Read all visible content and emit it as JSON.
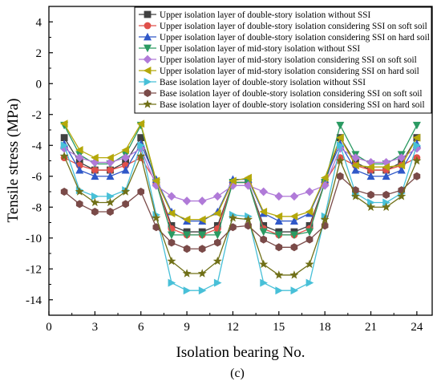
{
  "chart_data": {
    "type": "line",
    "xlabel": "Isolation bearing No.",
    "ylabel": "Tensile stress (MPa)",
    "caption": "(c)",
    "xlim": [
      0,
      25
    ],
    "ylim": [
      -15,
      5
    ],
    "xticks": [
      0,
      3,
      6,
      9,
      12,
      15,
      18,
      21,
      24
    ],
    "yticks": [
      4,
      2,
      0,
      -2,
      -4,
      -6,
      -8,
      -10,
      -12,
      -14
    ],
    "legend_position": "top-right",
    "x": [
      1,
      2,
      3,
      4,
      5,
      6,
      7,
      8,
      9,
      10,
      11,
      12,
      13,
      14,
      15,
      16,
      17,
      18,
      19,
      20,
      21,
      22,
      23,
      24
    ],
    "series": [
      {
        "name": "Upper isolation layer of double-story isolation without SSI",
        "color": "#404040",
        "marker": "square",
        "values": [
          -3.5,
          -5.1,
          -5.6,
          -5.6,
          -5.1,
          -3.5,
          -6.4,
          -9.2,
          -9.6,
          -9.6,
          -9.2,
          -6.4,
          -6.4,
          -9.2,
          -9.6,
          -9.6,
          -9.2,
          -6.4,
          -3.5,
          -5.1,
          -5.6,
          -5.6,
          -5.1,
          -3.5
        ]
      },
      {
        "name": "Upper isolation layer of double-story isolation considering SSI on soft soil",
        "color": "#e0504a",
        "marker": "circle",
        "values": [
          -4.8,
          -5.3,
          -5.6,
          -5.6,
          -5.3,
          -4.8,
          -6.4,
          -9.4,
          -9.8,
          -9.8,
          -9.4,
          -6.4,
          -6.4,
          -9.4,
          -9.8,
          -9.8,
          -9.4,
          -6.4,
          -4.8,
          -5.3,
          -5.6,
          -5.6,
          -5.3,
          -4.8
        ]
      },
      {
        "name": "Upper isolation layer of double-story isolation considering SSI on hard soil",
        "color": "#3058c8",
        "marker": "triangle-up",
        "values": [
          -3.9,
          -5.6,
          -6.0,
          -6.0,
          -5.6,
          -3.9,
          -6.2,
          -8.3,
          -8.9,
          -8.9,
          -8.3,
          -6.2,
          -6.2,
          -8.4,
          -8.9,
          -8.9,
          -8.4,
          -6.2,
          -3.9,
          -5.6,
          -6.0,
          -6.0,
          -5.6,
          -3.9
        ]
      },
      {
        "name": "Upper isolation layer of mid-story isolation without SSI",
        "color": "#2a9a62",
        "marker": "triangle-down",
        "values": [
          -2.7,
          -4.6,
          -5.2,
          -5.2,
          -4.6,
          -2.7,
          -6.4,
          -9.8,
          -9.8,
          -9.8,
          -9.8,
          -6.4,
          -6.4,
          -9.6,
          -9.8,
          -9.8,
          -9.6,
          -6.4,
          -2.7,
          -4.6,
          -5.2,
          -5.2,
          -4.6,
          -2.7
        ]
      },
      {
        "name": "Upper isolation layer of mid-story isolation considering SSI on soft soil",
        "color": "#b07ad8",
        "marker": "diamond",
        "values": [
          -4.2,
          -4.8,
          -5.1,
          -5.1,
          -4.8,
          -4.2,
          -6.6,
          -7.3,
          -7.6,
          -7.6,
          -7.3,
          -6.6,
          -6.6,
          -7.0,
          -7.3,
          -7.3,
          -7.0,
          -6.6,
          -4.2,
          -4.8,
          -5.1,
          -5.1,
          -4.8,
          -4.2
        ]
      },
      {
        "name": "Upper isolation layer of mid-story isolation considering SSI on hard soil",
        "color": "#b4a80a",
        "marker": "triangle-left",
        "values": [
          -2.6,
          -4.3,
          -4.8,
          -4.8,
          -4.3,
          -2.6,
          -6.3,
          -8.4,
          -8.8,
          -8.8,
          -8.4,
          -6.3,
          -6.1,
          -8.3,
          -8.6,
          -8.6,
          -8.3,
          -6.1,
          -3.5,
          -5.3,
          -5.4,
          -5.4,
          -5.3,
          -3.5
        ]
      },
      {
        "name": "Base isolation layer of  double-story isolation without SSI",
        "color": "#48c0d8",
        "marker": "triangle-right",
        "values": [
          -4.0,
          -6.9,
          -7.3,
          -7.3,
          -6.9,
          -4.0,
          -8.5,
          -12.9,
          -13.4,
          -13.4,
          -12.9,
          -8.5,
          -8.6,
          -12.9,
          -13.4,
          -13.4,
          -12.9,
          -8.6,
          -4.0,
          -7.1,
          -7.7,
          -7.7,
          -7.1,
          -4.0
        ]
      },
      {
        "name": "Base isolation layer of double-story isolation considering SSI on soft soil",
        "color": "#7a4a48",
        "marker": "hexagon",
        "values": [
          -7.0,
          -7.8,
          -8.3,
          -8.3,
          -7.8,
          -7.0,
          -9.3,
          -10.3,
          -10.7,
          -10.7,
          -10.3,
          -9.3,
          -9.2,
          -10.1,
          -10.6,
          -10.6,
          -10.1,
          -9.2,
          -6.0,
          -6.9,
          -7.2,
          -7.2,
          -6.9,
          -6.0
        ]
      },
      {
        "name": "Base isolation layer of double-story isolation considering SSI on hard soil",
        "color": "#707018",
        "marker": "star",
        "values": [
          -4.7,
          -7.0,
          -7.7,
          -7.7,
          -7.0,
          -4.7,
          -8.7,
          -11.5,
          -12.3,
          -12.3,
          -11.5,
          -8.7,
          -8.8,
          -11.7,
          -12.4,
          -12.4,
          -11.7,
          -8.8,
          -5.0,
          -7.3,
          -8.0,
          -8.0,
          -7.3,
          -5.0
        ]
      }
    ]
  },
  "colors": {
    "frame": "#000000",
    "legend_border": "#000000",
    "background": "#ffffff"
  }
}
